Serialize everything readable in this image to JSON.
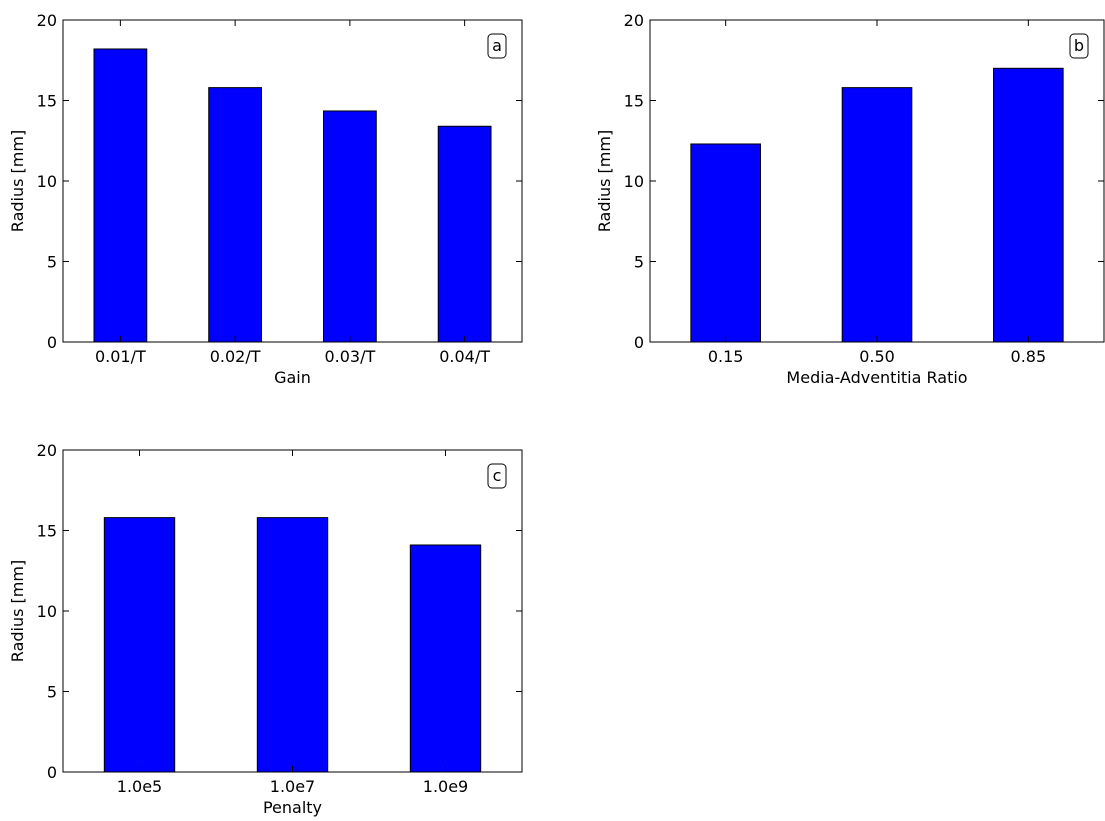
{
  "colors": {
    "bar_fill": "#0000ff",
    "bar_edge": "#000000",
    "axes": "#000000",
    "background": "#ffffff"
  },
  "chart_data": [
    {
      "type": "bar",
      "panel_label": "a",
      "categories": [
        "0.01/T",
        "0.02/T",
        "0.03/T",
        "0.04/T"
      ],
      "values": [
        18.2,
        15.8,
        14.35,
        13.4
      ],
      "xlabel": "Gain",
      "ylabel": "Radius [mm]",
      "ylim": [
        0,
        20
      ],
      "yticks": [
        0,
        5,
        10,
        15,
        20
      ],
      "grid": false,
      "legend": "none"
    },
    {
      "type": "bar",
      "panel_label": "b",
      "categories": [
        "0.15",
        "0.50",
        "0.85"
      ],
      "values": [
        12.3,
        15.8,
        17.0
      ],
      "xlabel": "Media-Adventitia Ratio",
      "ylabel": "Radius [mm]",
      "ylim": [
        0,
        20
      ],
      "yticks": [
        0,
        5,
        10,
        15,
        20
      ],
      "grid": false,
      "legend": "none"
    },
    {
      "type": "bar",
      "panel_label": "c",
      "categories": [
        "1.0e5",
        "1.0e7",
        "1.0e9"
      ],
      "values": [
        15.8,
        15.8,
        14.1
      ],
      "xlabel": "Penalty",
      "ylabel": "Radius [mm]",
      "ylim": [
        0,
        20
      ],
      "yticks": [
        0,
        5,
        10,
        15,
        20
      ],
      "grid": false,
      "legend": "none"
    }
  ]
}
